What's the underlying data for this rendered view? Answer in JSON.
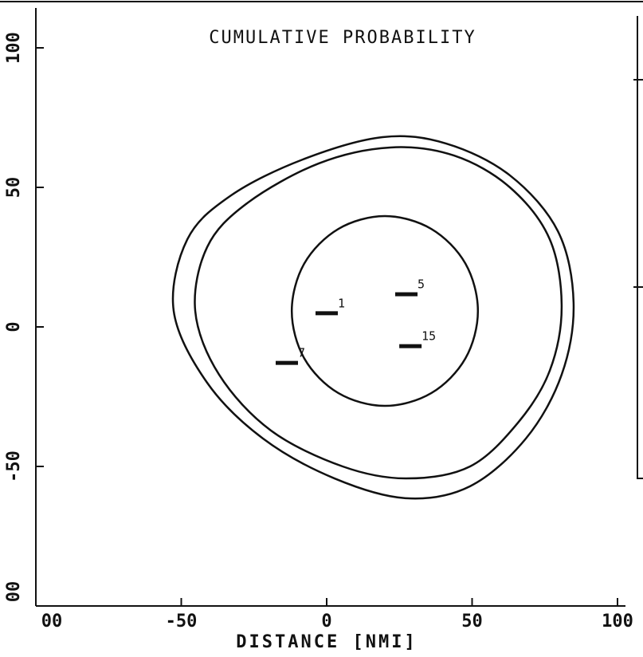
{
  "chart_data": {
    "type": "contour",
    "title": "CUMULATIVE PROBABILITY",
    "x_label": "DISTANCE [NMI]",
    "xlim": [
      -100,
      100
    ],
    "ylim": [
      -100,
      100
    ],
    "xticks": [
      {
        "value": -100,
        "label": "00"
      },
      -50,
      0,
      50,
      100
    ],
    "yticks": [
      100,
      50,
      0,
      -50,
      {
        "value": -100,
        "label": "00"
      }
    ],
    "color": "#111111",
    "series": [
      {
        "x": [
          -52.6,
          -47.9,
          -32.9,
          -8.2,
          19.2,
          41.1,
          63,
          79.5,
          84.9,
          80.8,
          68.5,
          49.3,
          27.4,
          2.7,
          -21.9,
          -41.1
        ],
        "values": [
          5.7,
          31.4,
          47.1,
          60,
          68,
          65.7,
          54.3,
          34.3,
          8.6,
          -17.1,
          -40,
          -57.1,
          -61.4,
          -54.3,
          -40,
          -20
        ]
      },
      {
        "x": [
          -45.2,
          -41.1,
          -27.4,
          -2.7,
          21.9,
          43.8,
          63,
          76.7,
          80.8,
          76.7,
          65.8,
          49.3,
          27.4,
          5.5,
          -19.2,
          -37
        ],
        "values": [
          5.7,
          28.6,
          44.3,
          58.6,
          64.3,
          61.4,
          50,
          31.4,
          7.1,
          -15.7,
          -34.3,
          -50,
          -54.3,
          -50,
          -37.1,
          -17.1
        ]
      },
      {
        "x": [
          52,
          47.7,
          36,
          20,
          4,
          -7.7,
          -12,
          -7.7,
          4,
          20,
          36,
          47.7
        ],
        "values": [
          5.7,
          22.7,
          35.1,
          39.7,
          35.1,
          22.7,
          5.7,
          -11.3,
          -23.7,
          -28.3,
          -23.7,
          -11.3
        ]
      }
    ],
    "points": {
      "x": [
        0,
        27.4,
        28.8,
        -13.7
      ],
      "values": [
        4.9,
        11.7,
        -6.9,
        -12.9
      ],
      "labels": [
        "1",
        "5",
        "15",
        "7"
      ]
    }
  }
}
